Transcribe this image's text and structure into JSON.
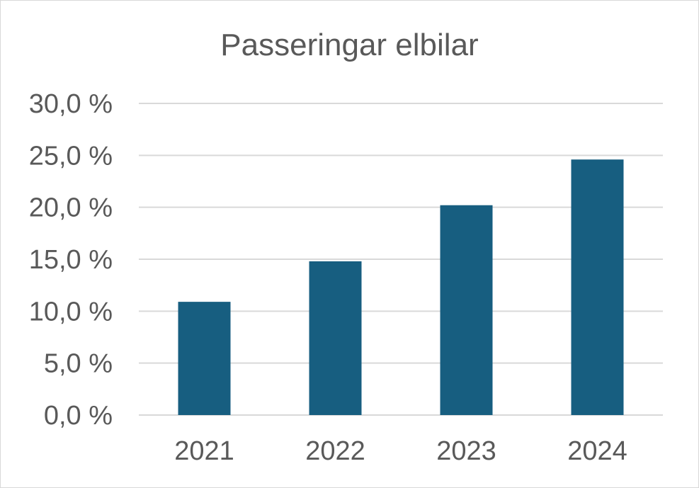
{
  "chart_data": {
    "type": "bar",
    "title": "Passeringar elbilar",
    "xlabel": "",
    "ylabel": "",
    "categories": [
      "2021",
      "2022",
      "2023",
      "2024"
    ],
    "values": [
      10.9,
      14.8,
      20.2,
      24.6
    ],
    "ylim": [
      0,
      30
    ],
    "yticks": [
      0,
      5,
      10,
      15,
      20,
      25,
      30
    ],
    "ytick_labels": [
      "0,0 %",
      "5,0 %",
      "10,0 %",
      "15,0 %",
      "20,0 %",
      "25,0 %",
      "30,0 %"
    ],
    "grid": true,
    "legend": "none",
    "bar_color": "#175e80",
    "grid_color": "#d9d9d9"
  }
}
